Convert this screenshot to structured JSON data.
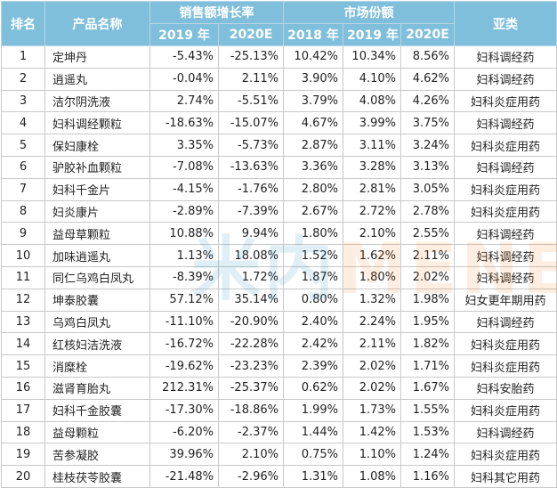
{
  "header": {
    "rank": "排名",
    "product": "产品名称",
    "growth_group": "销售额增长率",
    "share_group": "市场份额",
    "category": "亚类",
    "growth_cols": [
      "2019 年",
      "2020E"
    ],
    "share_cols": [
      "2018 年",
      "2019 年",
      "2020E"
    ]
  },
  "colors": {
    "header_bg": "#7fbfdc",
    "header_text": "#ffffff",
    "grid": "#c8c8c8"
  },
  "watermark": {
    "part1": "米内",
    "part2": "MENET"
  },
  "rows": [
    {
      "rank": "1",
      "name": "定坤丹",
      "g2019": "-5.43%",
      "g2020": "-25.13%",
      "s2018": "10.42%",
      "s2019": "10.34%",
      "s2020": "8.56%",
      "cat": "妇科调经药"
    },
    {
      "rank": "2",
      "name": "逍遥丸",
      "g2019": "-0.04%",
      "g2020": "2.11%",
      "s2018": "3.90%",
      "s2019": "4.10%",
      "s2020": "4.62%",
      "cat": "妇科调经药"
    },
    {
      "rank": "3",
      "name": "洁尔阴洗液",
      "g2019": "2.74%",
      "g2020": "-5.51%",
      "s2018": "3.79%",
      "s2019": "4.08%",
      "s2020": "4.26%",
      "cat": "妇科炎症用药"
    },
    {
      "rank": "4",
      "name": "妇科调经颗粒",
      "g2019": "-18.63%",
      "g2020": "-15.07%",
      "s2018": "4.67%",
      "s2019": "3.99%",
      "s2020": "3.75%",
      "cat": "妇科调经药"
    },
    {
      "rank": "5",
      "name": "保妇康栓",
      "g2019": "3.35%",
      "g2020": "-5.73%",
      "s2018": "2.87%",
      "s2019": "3.11%",
      "s2020": "3.24%",
      "cat": "妇科炎症用药"
    },
    {
      "rank": "6",
      "name": "驴胶补血颗粒",
      "g2019": "-7.08%",
      "g2020": "-13.63%",
      "s2018": "3.36%",
      "s2019": "3.28%",
      "s2020": "3.13%",
      "cat": "妇科调经药"
    },
    {
      "rank": "7",
      "name": "妇科千金片",
      "g2019": "-4.15%",
      "g2020": "-1.76%",
      "s2018": "2.80%",
      "s2019": "2.81%",
      "s2020": "3.05%",
      "cat": "妇科炎症用药"
    },
    {
      "rank": "8",
      "name": "妇炎康片",
      "g2019": "-2.89%",
      "g2020": "-7.39%",
      "s2018": "2.67%",
      "s2019": "2.72%",
      "s2020": "2.78%",
      "cat": "妇科炎症用药"
    },
    {
      "rank": "9",
      "name": "益母草颗粒",
      "g2019": "10.88%",
      "g2020": "9.94%",
      "s2018": "1.80%",
      "s2019": "2.10%",
      "s2020": "2.55%",
      "cat": "妇科调经药"
    },
    {
      "rank": "10",
      "name": "加味逍遥丸",
      "g2019": "1.13%",
      "g2020": "18.08%",
      "s2018": "1.52%",
      "s2019": "1.62%",
      "s2020": "2.11%",
      "cat": "妇科调经药"
    },
    {
      "rank": "11",
      "name": "同仁乌鸡白凤丸",
      "g2019": "-8.39%",
      "g2020": "1.72%",
      "s2018": "1.87%",
      "s2019": "1.80%",
      "s2020": "2.02%",
      "cat": "妇科调经药"
    },
    {
      "rank": "12",
      "name": "坤泰胶囊",
      "g2019": "57.12%",
      "g2020": "35.14%",
      "s2018": "0.80%",
      "s2019": "1.32%",
      "s2020": "1.98%",
      "cat": "妇女更年期用药"
    },
    {
      "rank": "13",
      "name": "乌鸡白凤丸",
      "g2019": "-11.10%",
      "g2020": "-20.90%",
      "s2018": "2.40%",
      "s2019": "2.24%",
      "s2020": "1.95%",
      "cat": "妇科调经药"
    },
    {
      "rank": "14",
      "name": "红核妇洁洗液",
      "g2019": "-16.72%",
      "g2020": "-22.28%",
      "s2018": "2.42%",
      "s2019": "2.11%",
      "s2020": "1.82%",
      "cat": "妇科炎症用药"
    },
    {
      "rank": "15",
      "name": "消糜栓",
      "g2019": "-19.62%",
      "g2020": "-23.23%",
      "s2018": "2.39%",
      "s2019": "2.02%",
      "s2020": "1.71%",
      "cat": "妇科炎症用药"
    },
    {
      "rank": "16",
      "name": "滋肾育胎丸",
      "g2019": "212.31%",
      "g2020": "-25.37%",
      "s2018": "0.62%",
      "s2019": "2.02%",
      "s2020": "1.67%",
      "cat": "妇科安胎药"
    },
    {
      "rank": "17",
      "name": "妇科千金胶囊",
      "g2019": "-17.30%",
      "g2020": "-18.86%",
      "s2018": "1.99%",
      "s2019": "1.73%",
      "s2020": "1.55%",
      "cat": "妇科炎症用药"
    },
    {
      "rank": "18",
      "name": "益母颗粒",
      "g2019": "-6.20%",
      "g2020": "-2.37%",
      "s2018": "1.44%",
      "s2019": "1.42%",
      "s2020": "1.53%",
      "cat": "妇科调经药"
    },
    {
      "rank": "19",
      "name": "苦参凝胶",
      "g2019": "39.96%",
      "g2020": "2.10%",
      "s2018": "0.75%",
      "s2019": "1.10%",
      "s2020": "1.24%",
      "cat": "妇科炎症用药"
    },
    {
      "rank": "20",
      "name": "桂枝茯苓胶囊",
      "g2019": "-21.48%",
      "g2020": "-2.96%",
      "s2018": "1.31%",
      "s2019": "1.08%",
      "s2020": "1.16%",
      "cat": "妇科其它用药"
    }
  ]
}
